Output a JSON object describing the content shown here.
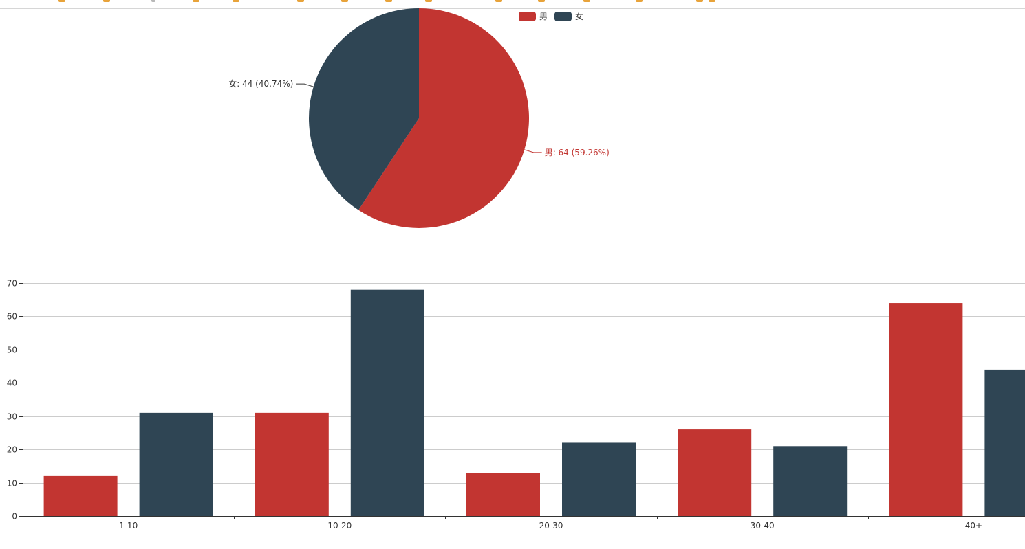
{
  "colors": {
    "male": "#c23531",
    "female": "#2f4554",
    "grid": "#cccccc",
    "axis": "#333333",
    "axis_text": "#333333"
  },
  "bookmark_icons": [
    "bookmark-icon",
    "bookmark-icon",
    "page-icon",
    "bookmark-icon",
    "bookmark-icon",
    "bookmark-icon",
    "bookmark-icon",
    "bookmark-icon",
    "bookmark-icon",
    "bookmark-icon",
    "bookmark-icon",
    "bookmark-icon",
    "bookmark-icon",
    "bookmark-icon",
    "bookmark-icon"
  ],
  "legend": {
    "items": [
      "男",
      "女"
    ]
  },
  "chart_data": [
    {
      "type": "pie",
      "slices": [
        {
          "name": "男",
          "value": 64,
          "percent": "59.26%",
          "label": "男: 64 (59.26%)"
        },
        {
          "name": "女",
          "value": 44,
          "percent": "40.74%",
          "label": "女: 44 (40.74%)"
        }
      ]
    },
    {
      "type": "bar",
      "categories": [
        "1-10",
        "10-20",
        "20-30",
        "30-40",
        "40+"
      ],
      "series": [
        {
          "name": "男",
          "values": [
            12,
            31,
            13,
            26,
            64
          ]
        },
        {
          "name": "女",
          "values": [
            31,
            68,
            22,
            21,
            44
          ]
        }
      ],
      "ylim": [
        0,
        70
      ],
      "yticks": [
        "0",
        "10",
        "20",
        "30",
        "40",
        "50",
        "60",
        "70"
      ],
      "grid": true
    }
  ]
}
